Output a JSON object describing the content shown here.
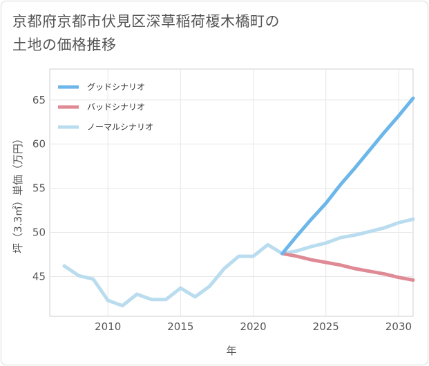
{
  "title_lines": [
    "京都府京都市伏見区深草稲荷榎木橋町の",
    "土地の価格推移"
  ],
  "chart_data": {
    "type": "line",
    "title": "京都府京都市伏見区深草稲荷榎木橋町の土地の価格推移",
    "xlabel": "年",
    "ylabel": "坪（3.3㎡）単価（万円）",
    "xlim": [
      2006,
      2031
    ],
    "ylim": [
      40.5,
      68.5
    ],
    "x_ticks": [
      2010,
      2015,
      2020,
      2025,
      2030
    ],
    "y_ticks": [
      45,
      50,
      55,
      60,
      65
    ],
    "grid": true,
    "legend_position": "top-left",
    "series": [
      {
        "name": "グッドシナリオ",
        "color": "#6cb6ea",
        "x": [
          2022,
          2023,
          2024,
          2025,
          2026,
          2027,
          2028,
          2029,
          2030,
          2031
        ],
        "y": [
          47.6,
          49.6,
          51.5,
          53.3,
          55.4,
          57.3,
          59.3,
          61.3,
          63.2,
          65.2
        ]
      },
      {
        "name": "バッドシナリオ",
        "color": "#df8a94",
        "x": [
          2022,
          2023,
          2024,
          2025,
          2026,
          2027,
          2028,
          2029,
          2030,
          2031
        ],
        "y": [
          47.6,
          47.3,
          46.9,
          46.6,
          46.3,
          45.9,
          45.6,
          45.3,
          44.9,
          44.6
        ]
      },
      {
        "name": "ノーマルシナリオ",
        "color": "#b9dcef",
        "x": [
          2007,
          2008,
          2009,
          2010,
          2011,
          2012,
          2013,
          2014,
          2015,
          2016,
          2017,
          2018,
          2019,
          2020,
          2021,
          2022,
          2023,
          2024,
          2025,
          2026,
          2027,
          2028,
          2029,
          2030,
          2031
        ],
        "y": [
          46.2,
          45.1,
          44.7,
          42.3,
          41.7,
          43.0,
          42.4,
          42.4,
          43.7,
          42.7,
          43.9,
          45.9,
          47.3,
          47.3,
          48.6,
          47.6,
          47.9,
          48.4,
          48.8,
          49.4,
          49.7,
          50.1,
          50.5,
          51.1,
          51.5
        ]
      }
    ]
  }
}
